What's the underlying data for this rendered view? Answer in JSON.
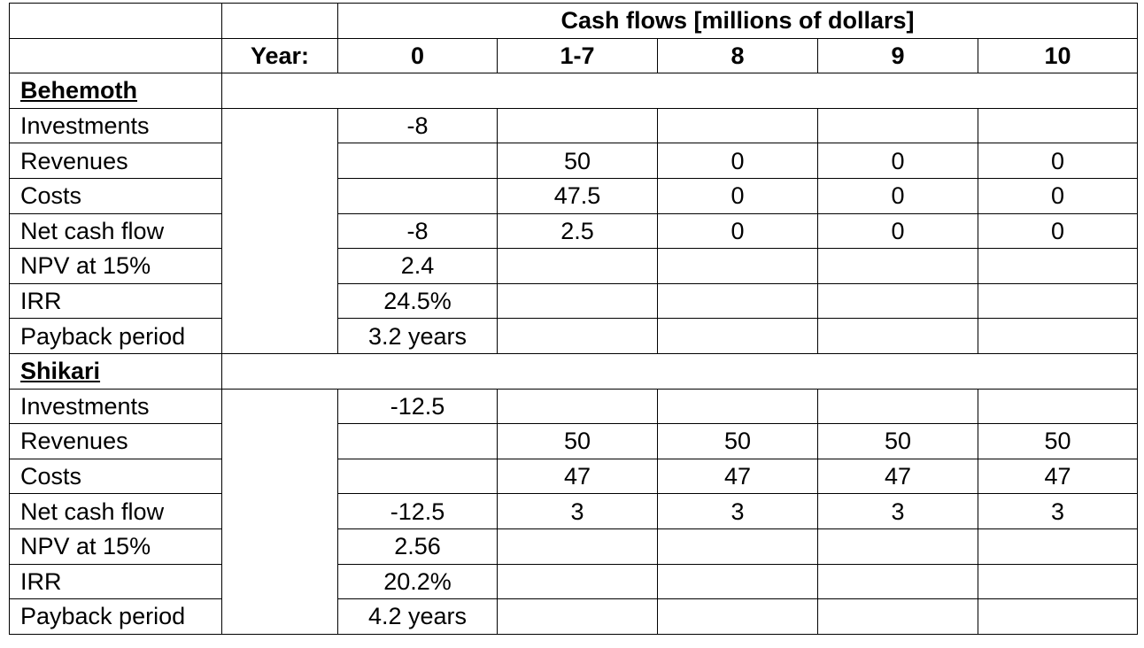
{
  "header": {
    "cash_flows_title": "Cash flows [millions of dollars]",
    "year_label": "Year:",
    "years": [
      "0",
      "1-7",
      "8",
      "9",
      "10"
    ]
  },
  "projects": [
    {
      "name": "Behemoth",
      "rows": [
        {
          "label": "Investments",
          "cells": [
            "-8",
            "",
            "",
            "",
            ""
          ]
        },
        {
          "label": "Revenues",
          "cells": [
            "",
            "50",
            "0",
            "0",
            "0"
          ]
        },
        {
          "label": "Costs",
          "cells": [
            "",
            "47.5",
            "0",
            "0",
            "0"
          ]
        },
        {
          "label": "Net cash flow",
          "cells": [
            "-8",
            "2.5",
            "0",
            "0",
            "0"
          ]
        },
        {
          "label": "NPV at 15%",
          "cells": [
            "2.4",
            "",
            "",
            "",
            ""
          ]
        },
        {
          "label": "IRR",
          "cells": [
            "24.5%",
            "",
            "",
            "",
            ""
          ]
        },
        {
          "label": "Payback period",
          "cells": [
            "3.2 years",
            "",
            "",
            "",
            ""
          ]
        }
      ]
    },
    {
      "name": "Shikari",
      "rows": [
        {
          "label": "Investments",
          "cells": [
            "-12.5",
            "",
            "",
            "",
            ""
          ]
        },
        {
          "label": "Revenues",
          "cells": [
            "",
            "50",
            "50",
            "50",
            "50"
          ]
        },
        {
          "label": "Costs",
          "cells": [
            "",
            "47",
            "47",
            "47",
            "47"
          ]
        },
        {
          "label": "Net cash flow",
          "cells": [
            "-12.5",
            "3",
            "3",
            "3",
            "3"
          ]
        },
        {
          "label": "NPV at 15%",
          "cells": [
            "2.56",
            "",
            "",
            "",
            ""
          ]
        },
        {
          "label": "IRR",
          "cells": [
            "20.2%",
            "",
            "",
            "",
            ""
          ]
        },
        {
          "label": "Payback period",
          "cells": [
            "4.2 years",
            "",
            "",
            "",
            ""
          ]
        }
      ]
    }
  ]
}
